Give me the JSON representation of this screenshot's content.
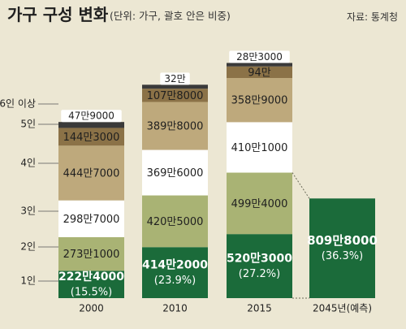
{
  "title": "가구 구성 변화",
  "subtitle": "(단위: 가구, 괄호 안은 비중)",
  "source": "자료: 통계청",
  "colors": {
    "background": "#ece7d3",
    "one": "#1b6b3a",
    "two": "#a9b374",
    "three": "#ffffff",
    "four": "#bea97c",
    "five": "#8b7247",
    "six": "#3a3a3a"
  },
  "chart_data": {
    "type": "bar",
    "stacked": true,
    "categories": [
      "2000",
      "2010",
      "2015",
      "2045년(예측)"
    ],
    "legend": [
      "1인",
      "2인",
      "3인",
      "4인",
      "5인",
      "6인 이상"
    ],
    "series": [
      {
        "name": "1인",
        "values": [
          2224000,
          4142000,
          5203000,
          8098000
        ],
        "labels": [
          "222만4000",
          "414만2000",
          "520만3000",
          "809만8000"
        ],
        "shares": [
          "(15.5%)",
          "(23.9%)",
          "(27.2%)",
          "(36.3%)"
        ]
      },
      {
        "name": "2인",
        "values": [
          2731000,
          4205000,
          4994000,
          null
        ],
        "labels": [
          "273만1000",
          "420만5000",
          "499만4000",
          ""
        ]
      },
      {
        "name": "3인",
        "values": [
          2987000,
          3696000,
          4101000,
          null
        ],
        "labels": [
          "298만7000",
          "369만6000",
          "410만1000",
          ""
        ]
      },
      {
        "name": "4인",
        "values": [
          4447000,
          3898000,
          3589000,
          null
        ],
        "labels": [
          "444만7000",
          "389만8000",
          "358만9000",
          ""
        ]
      },
      {
        "name": "5인",
        "values": [
          1443000,
          1078000,
          940000,
          null
        ],
        "labels": [
          "144만3000",
          "107만8000",
          "94만",
          ""
        ]
      },
      {
        "name": "6인 이상",
        "values": [
          479000,
          320000,
          283000,
          null
        ],
        "labels": [
          "47만9000",
          "32만",
          "28만3000",
          ""
        ]
      }
    ]
  }
}
